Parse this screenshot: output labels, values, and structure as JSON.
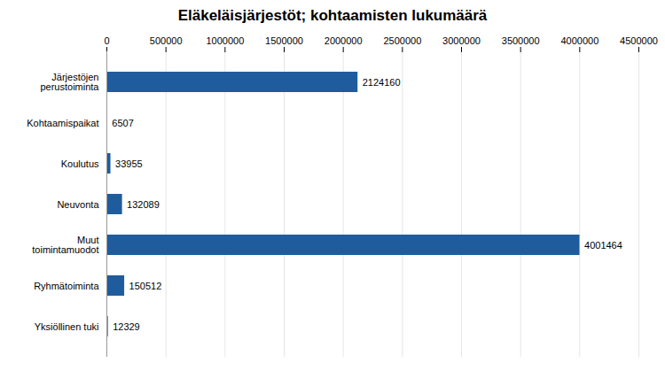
{
  "chart_data": {
    "type": "bar",
    "orientation": "horizontal",
    "title": "Eläkeläisjärjestöt; kohtaamisten lukumäärä",
    "categories": [
      "Järjestöjen\nperustoiminta",
      "Kohtaamispaikat",
      "Koulutus",
      "Neuvonta",
      "Muut\ntoimintamuodot",
      "Ryhmätoiminta",
      "Yksiöllinen tuki"
    ],
    "values": [
      2124160,
      6507,
      33955,
      132089,
      4001464,
      150512,
      12329
    ],
    "color": "#1F5C9E",
    "xlim": [
      0,
      4500000
    ],
    "xticks": [
      0,
      500000,
      1000000,
      1500000,
      2000000,
      2500000,
      3000000,
      3500000,
      4000000,
      4500000
    ],
    "grid": true,
    "data_labels": true
  }
}
